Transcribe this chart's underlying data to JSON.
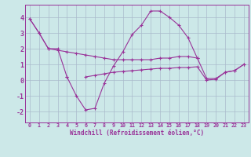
{
  "xlabel": "Windchill (Refroidissement éolien,°C)",
  "background_color": "#cce8e8",
  "line_color": "#993399",
  "grid_color": "#aabbcc",
  "x_hours": [
    0,
    1,
    2,
    3,
    4,
    5,
    6,
    7,
    8,
    9,
    10,
    11,
    12,
    13,
    14,
    15,
    16,
    17,
    18,
    19,
    20,
    21,
    22,
    23
  ],
  "series_main": [
    3.9,
    3.0,
    2.0,
    2.0,
    0.2,
    -1.0,
    -1.9,
    -1.8,
    -0.2,
    0.9,
    1.8,
    2.9,
    3.5,
    4.4,
    4.4,
    4.0,
    3.5,
    2.7,
    1.4,
    0.1,
    0.1,
    0.5,
    0.6,
    1.0
  ],
  "series_upper": [
    3.9,
    3.0,
    2.0,
    1.9,
    1.8,
    1.7,
    1.6,
    1.5,
    1.4,
    1.3,
    1.3,
    1.3,
    1.3,
    1.3,
    1.4,
    1.4,
    1.5,
    1.5,
    1.4,
    null,
    null,
    null,
    null,
    null
  ],
  "series_lower": [
    null,
    null,
    null,
    null,
    0.2,
    null,
    0.2,
    0.3,
    0.4,
    0.5,
    0.55,
    0.6,
    0.65,
    0.7,
    0.75,
    0.75,
    0.8,
    0.8,
    0.85,
    0.0,
    0.05,
    0.5,
    0.6,
    1.0
  ],
  "ylim": [
    -2.7,
    4.8
  ],
  "xlim": [
    -0.5,
    23.5
  ],
  "yticks": [
    -2,
    -1,
    0,
    1,
    2,
    3,
    4
  ],
  "xtick_labels": [
    "0",
    "1",
    "2",
    "3",
    "4",
    "5",
    "6",
    "7",
    "8",
    "9",
    "10",
    "11",
    "12",
    "13",
    "14",
    "15",
    "16",
    "17",
    "18",
    "19",
    "20",
    "21",
    "22",
    "23"
  ]
}
